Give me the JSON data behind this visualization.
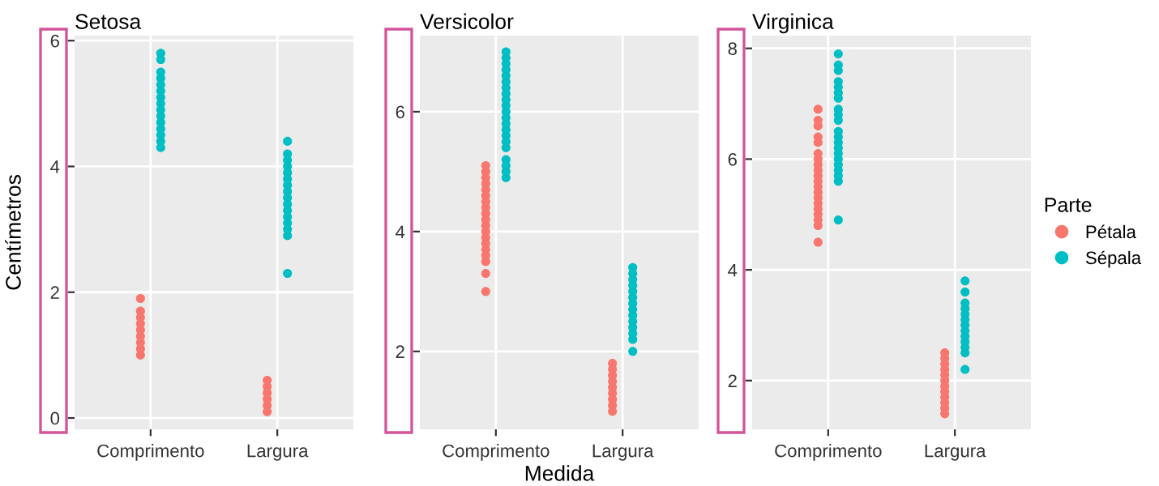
{
  "chart_data": [
    {
      "type": "scatter",
      "title": "Setosa",
      "ylabel": "Centímetros",
      "marker": "circle",
      "grid": true,
      "legend": false,
      "categories": [
        "Comprimento",
        "Largura"
      ],
      "ylim": [
        -0.18,
        6.08
      ],
      "yticks": [
        0,
        2,
        4,
        6
      ],
      "series": [
        {
          "color": "#f8766d",
          "x": [
            "Comprimento",
            "Comprimento",
            "Comprimento",
            "Comprimento",
            "Comprimento",
            "Comprimento",
            "Comprimento",
            "Comprimento",
            "Comprimento",
            "Largura",
            "Largura",
            "Largura",
            "Largura",
            "Largura",
            "Largura"
          ],
          "values": [
            1.0,
            1.1,
            1.2,
            1.3,
            1.4,
            1.5,
            1.6,
            1.7,
            1.9,
            0.1,
            0.2,
            0.3,
            0.4,
            0.5,
            0.6
          ]
        },
        {
          "color": "#00bfc4",
          "x": [
            "Comprimento",
            "Comprimento",
            "Comprimento",
            "Comprimento",
            "Comprimento",
            "Comprimento",
            "Comprimento",
            "Comprimento",
            "Comprimento",
            "Comprimento",
            "Comprimento",
            "Comprimento",
            "Comprimento",
            "Comprimento",
            "Comprimento",
            "Largura",
            "Largura",
            "Largura",
            "Largura",
            "Largura",
            "Largura",
            "Largura",
            "Largura",
            "Largura",
            "Largura",
            "Largura",
            "Largura",
            "Largura",
            "Largura",
            "Largura",
            "Largura"
          ],
          "values": [
            4.3,
            4.4,
            4.5,
            4.6,
            4.7,
            4.8,
            4.9,
            5.0,
            5.1,
            5.2,
            5.3,
            5.4,
            5.5,
            5.7,
            5.8,
            2.3,
            2.9,
            3.0,
            3.1,
            3.2,
            3.3,
            3.4,
            3.5,
            3.6,
            3.7,
            3.8,
            3.9,
            4.0,
            4.1,
            4.2,
            4.4
          ]
        }
      ]
    },
    {
      "type": "scatter",
      "title": "Versicolor",
      "xlabel": "Medida",
      "marker": "circle",
      "grid": true,
      "legend": false,
      "categories": [
        "Comprimento",
        "Largura"
      ],
      "ylim": [
        0.7,
        7.27
      ],
      "yticks": [
        2,
        4,
        6
      ],
      "series": [
        {
          "color": "#f8766d",
          "x": [
            "Comprimento",
            "Comprimento",
            "Comprimento",
            "Comprimento",
            "Comprimento",
            "Comprimento",
            "Comprimento",
            "Comprimento",
            "Comprimento",
            "Comprimento",
            "Comprimento",
            "Comprimento",
            "Comprimento",
            "Comprimento",
            "Comprimento",
            "Comprimento",
            "Comprimento",
            "Comprimento",
            "Comprimento",
            "Largura",
            "Largura",
            "Largura",
            "Largura",
            "Largura",
            "Largura",
            "Largura",
            "Largura",
            "Largura"
          ],
          "values": [
            3.0,
            3.3,
            3.5,
            3.6,
            3.7,
            3.8,
            3.9,
            4.0,
            4.1,
            4.2,
            4.3,
            4.4,
            4.5,
            4.6,
            4.7,
            4.8,
            4.9,
            5.0,
            5.1,
            1.0,
            1.1,
            1.2,
            1.3,
            1.4,
            1.5,
            1.6,
            1.7,
            1.8
          ]
        },
        {
          "color": "#00bfc4",
          "x": [
            "Comprimento",
            "Comprimento",
            "Comprimento",
            "Comprimento",
            "Comprimento",
            "Comprimento",
            "Comprimento",
            "Comprimento",
            "Comprimento",
            "Comprimento",
            "Comprimento",
            "Comprimento",
            "Comprimento",
            "Comprimento",
            "Comprimento",
            "Comprimento",
            "Comprimento",
            "Comprimento",
            "Comprimento",
            "Comprimento",
            "Comprimento",
            "Largura",
            "Largura",
            "Largura",
            "Largura",
            "Largura",
            "Largura",
            "Largura",
            "Largura",
            "Largura",
            "Largura",
            "Largura",
            "Largura",
            "Largura",
            "Largura"
          ],
          "values": [
            4.9,
            5.0,
            5.1,
            5.2,
            5.4,
            5.5,
            5.6,
            5.7,
            5.8,
            5.9,
            6.0,
            6.1,
            6.2,
            6.3,
            6.4,
            6.5,
            6.6,
            6.7,
            6.8,
            6.9,
            7.0,
            2.0,
            2.2,
            2.3,
            2.4,
            2.5,
            2.6,
            2.7,
            2.8,
            2.9,
            3.0,
            3.1,
            3.2,
            3.3,
            3.4
          ]
        }
      ]
    },
    {
      "type": "scatter",
      "title": "Virginica",
      "legend_title": "Parte",
      "marker": "circle",
      "grid": true,
      "legend": "right",
      "categories": [
        "Comprimento",
        "Largura"
      ],
      "ylim": [
        1.12,
        8.23
      ],
      "yticks": [
        2,
        4,
        6,
        8
      ],
      "series": [
        {
          "name": "Pétala",
          "color": "#f8766d",
          "x": [
            "Comprimento",
            "Comprimento",
            "Comprimento",
            "Comprimento",
            "Comprimento",
            "Comprimento",
            "Comprimento",
            "Comprimento",
            "Comprimento",
            "Comprimento",
            "Comprimento",
            "Comprimento",
            "Comprimento",
            "Comprimento",
            "Comprimento",
            "Comprimento",
            "Comprimento",
            "Comprimento",
            "Comprimento",
            "Comprimento",
            "Largura",
            "Largura",
            "Largura",
            "Largura",
            "Largura",
            "Largura",
            "Largura",
            "Largura",
            "Largura",
            "Largura",
            "Largura",
            "Largura"
          ],
          "values": [
            4.5,
            4.8,
            4.9,
            5.0,
            5.1,
            5.2,
            5.3,
            5.4,
            5.5,
            5.6,
            5.7,
            5.8,
            5.9,
            6.0,
            6.1,
            6.3,
            6.4,
            6.6,
            6.7,
            6.9,
            1.4,
            1.5,
            1.6,
            1.7,
            1.8,
            1.9,
            2.0,
            2.1,
            2.2,
            2.3,
            2.4,
            2.5
          ]
        },
        {
          "name": "Sépala",
          "color": "#00bfc4",
          "x": [
            "Comprimento",
            "Comprimento",
            "Comprimento",
            "Comprimento",
            "Comprimento",
            "Comprimento",
            "Comprimento",
            "Comprimento",
            "Comprimento",
            "Comprimento",
            "Comprimento",
            "Comprimento",
            "Comprimento",
            "Comprimento",
            "Comprimento",
            "Comprimento",
            "Comprimento",
            "Comprimento",
            "Comprimento",
            "Comprimento",
            "Comprimento",
            "Largura",
            "Largura",
            "Largura",
            "Largura",
            "Largura",
            "Largura",
            "Largura",
            "Largura",
            "Largura",
            "Largura",
            "Largura",
            "Largura",
            "Largura"
          ],
          "values": [
            4.9,
            5.6,
            5.7,
            5.8,
            5.9,
            6.0,
            6.1,
            6.2,
            6.3,
            6.4,
            6.5,
            6.7,
            6.8,
            6.9,
            7.1,
            7.2,
            7.3,
            7.4,
            7.6,
            7.7,
            7.9,
            2.2,
            2.5,
            2.6,
            2.7,
            2.8,
            2.9,
            3.0,
            3.1,
            3.2,
            3.3,
            3.4,
            3.6,
            3.8
          ]
        }
      ]
    }
  ]
}
